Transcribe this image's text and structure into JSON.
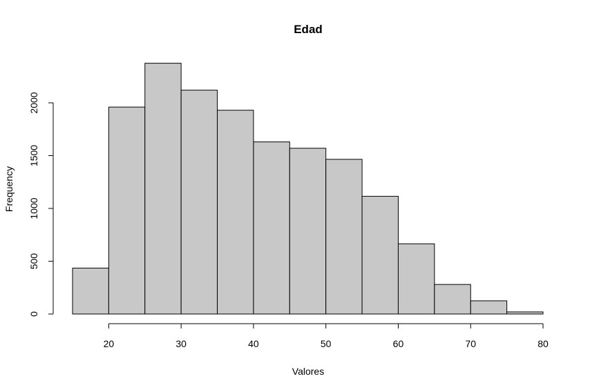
{
  "chart_data": {
    "type": "bar",
    "title": "Edad",
    "xlabel": "Valores",
    "ylabel": "Frequency",
    "bin_edges": [
      15,
      20,
      25,
      30,
      35,
      40,
      45,
      50,
      55,
      60,
      65,
      70,
      75,
      80
    ],
    "values": [
      435,
      1960,
      2375,
      2120,
      1930,
      1630,
      1570,
      1465,
      1115,
      665,
      280,
      125,
      20
    ],
    "xlim": [
      15,
      80
    ],
    "ylim": [
      0,
      2400
    ],
    "xticks": [
      20,
      30,
      40,
      50,
      60,
      70,
      80
    ],
    "yticks": [
      0,
      500,
      1000,
      1500,
      2000
    ],
    "grid": false,
    "bar_color": "#c8c8c8",
    "edge_color": "#000000"
  }
}
